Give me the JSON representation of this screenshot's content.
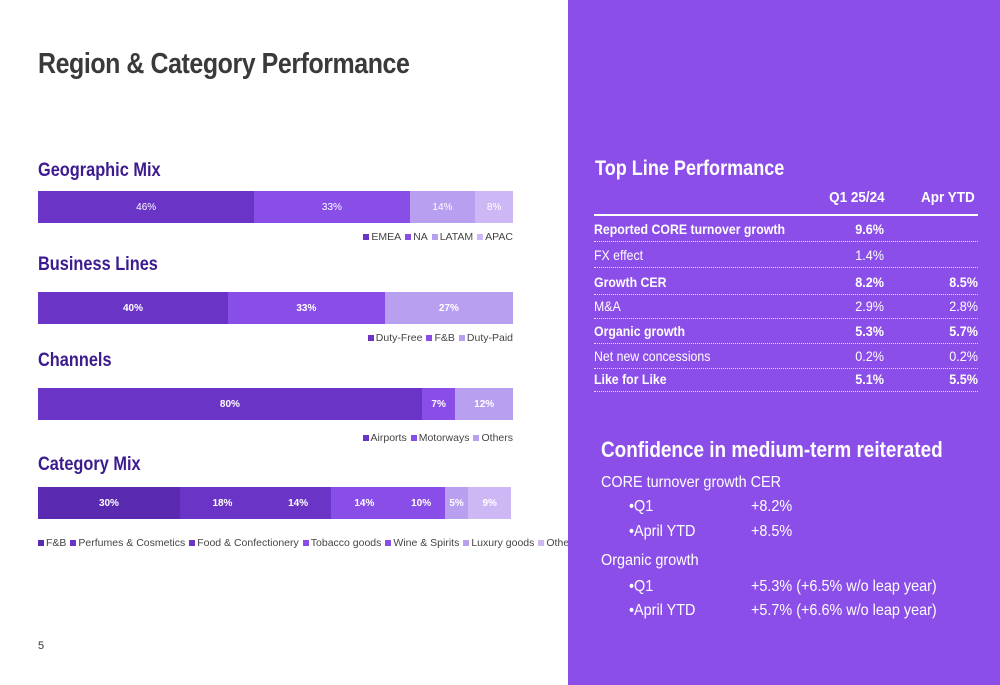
{
  "page": {
    "title": "Region & Category Performance",
    "number": "5"
  },
  "colors": {
    "dark": "#6a35c7",
    "mid": "#8a4ee8",
    "light": "#b89ff0",
    "lighter": "#cdb8f5",
    "darkest": "#5a2bb0",
    "panel": "#8b4ee8"
  },
  "chart_data": [
    {
      "type": "bar",
      "title": "Geographic Mix",
      "stacked": true,
      "orientation": "horizontal",
      "series": [
        {
          "name": "EMEA",
          "values": [
            46
          ],
          "label": "46%"
        },
        {
          "name": "NA",
          "values": [
            33
          ],
          "label": "33%"
        },
        {
          "name": "LATAM",
          "values": [
            14
          ],
          "label": "14%"
        },
        {
          "name": "APAC",
          "values": [
            8
          ],
          "label": "8%"
        }
      ],
      "legend": "bottom-right"
    },
    {
      "type": "bar",
      "title": "Business Lines",
      "stacked": true,
      "orientation": "horizontal",
      "series": [
        {
          "name": "Duty-Free",
          "values": [
            40
          ],
          "label": "40%"
        },
        {
          "name": "F&B",
          "values": [
            33
          ],
          "label": "33%"
        },
        {
          "name": "Duty-Paid",
          "values": [
            27
          ],
          "label": "27%"
        }
      ],
      "legend": "bottom-right"
    },
    {
      "type": "bar",
      "title": "Channels",
      "stacked": true,
      "orientation": "horizontal",
      "series": [
        {
          "name": "Airports",
          "values": [
            80
          ],
          "label": "80%"
        },
        {
          "name": "Motorways",
          "values": [
            7
          ],
          "label": "7%"
        },
        {
          "name": "Others",
          "values": [
            12
          ],
          "label": "12%"
        }
      ],
      "legend": "bottom-right"
    },
    {
      "type": "bar",
      "title": "Category Mix",
      "stacked": true,
      "orientation": "horizontal",
      "series": [
        {
          "name": "F&B",
          "values": [
            30
          ],
          "label": "30%"
        },
        {
          "name": "Perfumes & Cosmetics",
          "values": [
            18
          ],
          "label": "18%"
        },
        {
          "name": "Food & Confectionery",
          "values": [
            14
          ],
          "label": "14%"
        },
        {
          "name": "Tobacco goods",
          "values": [
            14
          ],
          "label": "14%"
        },
        {
          "name": "Wine & Spirits",
          "values": [
            10
          ],
          "label": "10%"
        },
        {
          "name": "Luxury goods",
          "values": [
            5
          ],
          "label": "5%"
        },
        {
          "name": "Others",
          "values": [
            9
          ],
          "label": "9%"
        }
      ],
      "legend": "bottom-left"
    }
  ],
  "top_line": {
    "title": "Top Line Performance",
    "columns": [
      "Q1 25/24",
      "Apr YTD"
    ],
    "rows": [
      {
        "label": "Reported CORE turnover growth",
        "q1": "9.6%",
        "ytd": "",
        "bold": true
      },
      {
        "label": "FX effect",
        "q1": "1.4%",
        "ytd": "",
        "bold": false
      },
      {
        "label": "Growth CER",
        "q1": "8.2%",
        "ytd": "8.5%",
        "bold": true
      },
      {
        "label": "M&A",
        "q1": "2.9%",
        "ytd": "2.8%",
        "bold": false
      },
      {
        "label": "Organic growth",
        "q1": "5.3%",
        "ytd": "5.7%",
        "bold": true
      },
      {
        "label": "Net new concessions",
        "q1": "0.2%",
        "ytd": "0.2%",
        "bold": false
      },
      {
        "label": "Like for Like",
        "q1": "5.1%",
        "ytd": "5.5%",
        "bold": true
      }
    ]
  },
  "confidence": {
    "title": "Confidence in medium-term reiterated",
    "groups": [
      {
        "heading": "CORE turnover growth CER",
        "items": [
          {
            "label": "Q1",
            "value": "+8.2%"
          },
          {
            "label": "April YTD",
            "value": "+8.5%"
          }
        ]
      },
      {
        "heading": "Organic growth",
        "items": [
          {
            "label": "Q1",
            "value": "+5.3% (+6.5% w/o leap year)"
          },
          {
            "label": "April YTD",
            "value": "+5.7% (+6.6% w/o leap year)"
          }
        ]
      }
    ]
  }
}
